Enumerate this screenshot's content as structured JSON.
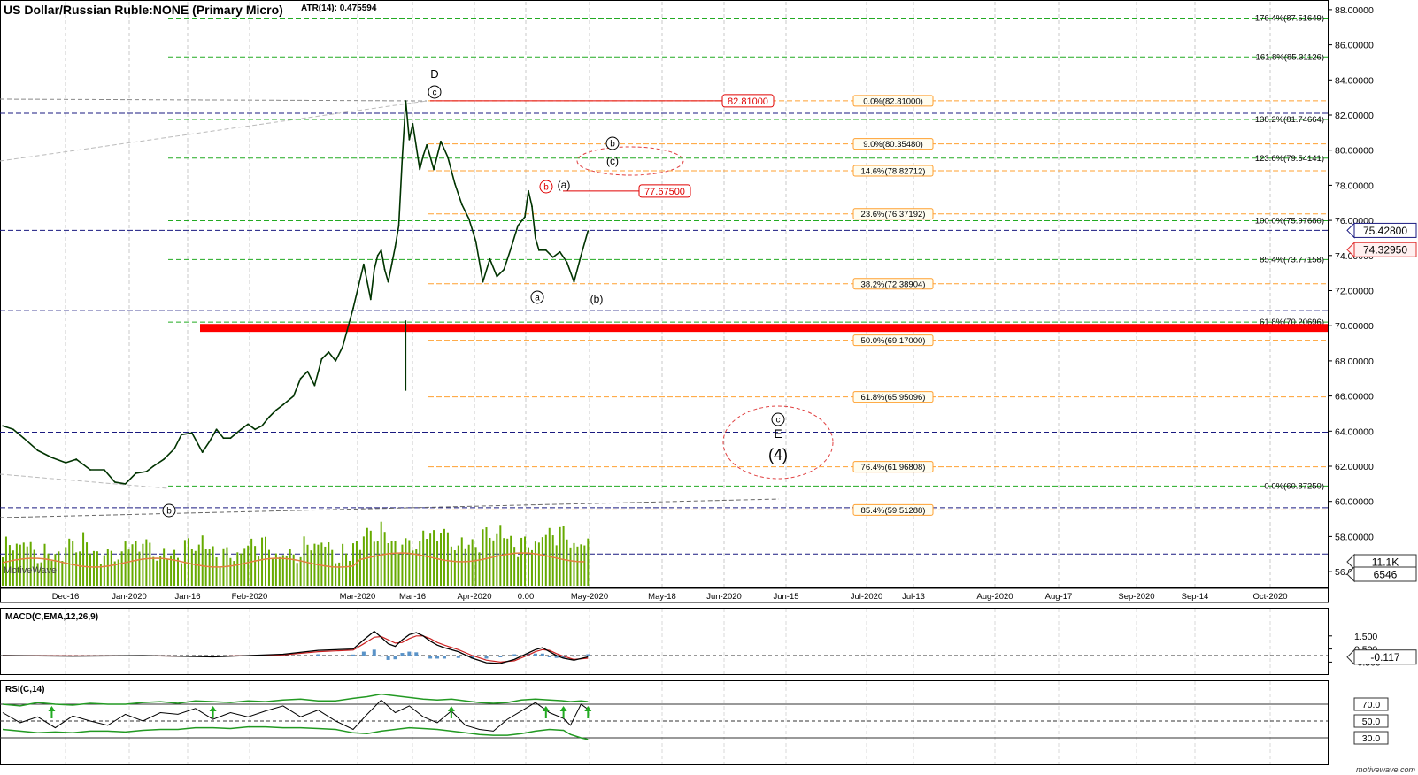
{
  "header": {
    "title": "US Dollar/Russian Ruble:NONE (Primary Micro)",
    "atr": "ATR(14): 0.475594"
  },
  "watermark": "MotiveWave",
  "footer_brand": "motivewave.com",
  "colors": {
    "price": "#003300",
    "green_fib": "#22aa22",
    "orange_fib": "#ffa030",
    "navy": "#1a1a80",
    "red_zone": "#ff0000",
    "volume": "#66aa00",
    "volume_avg": "#e08040",
    "macd_line": "#000000",
    "macd_signal": "#cc2222",
    "macd_hist": "#5a93c8",
    "rsi_line": "#000000",
    "rsi_band": "#229922",
    "rsi_arrow": "#22aa22"
  },
  "chart_data": {
    "type": "line",
    "main_panel": {
      "ylim": [
        55.5,
        88.3
      ],
      "y_ticks": [
        56,
        58,
        60,
        62,
        64,
        66,
        68,
        70,
        72,
        74,
        76,
        78,
        80,
        82,
        84,
        86,
        88
      ],
      "y_tick_labels": [
        "56.00000",
        "58.00000",
        "60.00000",
        "62.00000",
        "64.00000",
        "66.00000",
        "68.00000",
        "70.00000",
        "72.00000",
        "74.00000",
        "76.00000",
        "78.00000",
        "80.00000",
        "82.00000",
        "84.00000",
        "86.00000",
        "88.00000"
      ],
      "x_labels": [
        "Dec-16",
        "Jan-2020",
        "Jan-16",
        "Feb-2020",
        "Mar-2020",
        "Mar-16",
        "Apr-2020",
        "0:00",
        "May-2020",
        "May-18",
        "Jun-2020",
        "Jun-15",
        "Jul-2020",
        "Jul-13",
        "Aug-2020",
        "Aug-17",
        "Sep-2020",
        "Sep-14",
        "Oct-2020"
      ],
      "price_series": {
        "name": "",
        "x_day": [
          0,
          3,
          6,
          10,
          14,
          18,
          21,
          25,
          29,
          32,
          35,
          38,
          41,
          43,
          46,
          49,
          51,
          54,
          57,
          59,
          61,
          63,
          65,
          68,
          70,
          72,
          74,
          76,
          78,
          80,
          83,
          85,
          87,
          89,
          91,
          93,
          95,
          97,
          100,
          103,
          105,
          106,
          107,
          108,
          109,
          110,
          111,
          112,
          113,
          114,
          115,
          116,
          117,
          118,
          119,
          120,
          121,
          123,
          125,
          127,
          129,
          131,
          133,
          135,
          137,
          139,
          141,
          143,
          145,
          147,
          149,
          150,
          151,
          152,
          153,
          155,
          157,
          159,
          161,
          163,
          165,
          167
        ],
        "y": [
          64.3,
          64.1,
          63.6,
          62.9,
          62.5,
          62.2,
          62.4,
          61.8,
          61.8,
          61.1,
          61.0,
          61.6,
          61.7,
          62.0,
          62.4,
          63.0,
          63.8,
          63.9,
          62.8,
          63.4,
          64.1,
          63.6,
          63.6,
          64.1,
          64.4,
          64.1,
          64.3,
          64.8,
          65.2,
          65.5,
          66.0,
          67.0,
          67.4,
          66.6,
          68.1,
          68.5,
          68.0,
          68.8,
          71.0,
          73.5,
          71.5,
          73.2,
          74.0,
          74.3,
          73.2,
          72.5,
          73.5,
          74.5,
          75.7,
          79.5,
          82.8,
          80.6,
          81.5,
          80.2,
          78.9,
          79.7,
          80.3,
          78.9,
          80.5,
          79.6,
          78.1,
          76.9,
          76.1,
          74.8,
          72.5,
          73.8,
          72.8,
          73.2,
          74.4,
          75.7,
          76.2,
          77.68,
          76.8,
          75.0,
          74.3,
          74.3,
          73.9,
          74.2,
          73.6,
          72.5,
          74.0,
          75.4
        ]
      },
      "last_price_badge": "75.42800",
      "secondary_price_badge": "74.32950",
      "price_callouts": [
        {
          "label": "82.81000",
          "value": 82.81
        },
        {
          "label": "77.67500",
          "value": 77.675
        }
      ],
      "green_fibs": [
        {
          "label": "176.4%(87.51649)",
          "value": 87.51649
        },
        {
          "label": "161.8%(85.31126)",
          "value": 85.31126
        },
        {
          "label": "138.2%(81.74664)",
          "value": 81.74664
        },
        {
          "label": "123.6%(79.54141)",
          "value": 79.54141
        },
        {
          "label": "100.0%(75.97680)",
          "value": 75.9768
        },
        {
          "label": "85.4%(73.77158)",
          "value": 73.77158
        },
        {
          "label": "61.8%(70.20696)",
          "value": 70.20696
        },
        {
          "label": "0.0%(60.87250)",
          "value": 60.8725
        }
      ],
      "orange_fibs": [
        {
          "label": "0.0%(82.81000)",
          "value": 82.81
        },
        {
          "label": "9.0%(80.35480)",
          "value": 80.3548
        },
        {
          "label": "14.6%(78.82712)",
          "value": 78.82712
        },
        {
          "label": "23.6%(76.37192)",
          "value": 76.37192
        },
        {
          "label": "38.2%(72.38904)",
          "value": 72.38904
        },
        {
          "label": "50.0%(69.17000)",
          "value": 69.17
        },
        {
          "label": "61.8%(65.95096)",
          "value": 65.95096
        },
        {
          "label": "76.4%(61.96808)",
          "value": 61.96808
        },
        {
          "label": "85.4%(59.51288)",
          "value": 59.51288
        }
      ],
      "navy_levels": [
        82.1,
        75.43,
        70.86,
        63.94,
        59.64,
        57.0
      ],
      "red_zone": [
        69.65,
        70.1
      ],
      "wave_labels": [
        "D",
        "c",
        "b",
        "a",
        "(a)",
        "b",
        "(b)",
        "b",
        "(c)",
        "c",
        "E",
        "(4)"
      ],
      "volume_badges": [
        "11.1K",
        "6546"
      ]
    },
    "macd_panel": {
      "title": "MACD(C,EMA,12,26,9)",
      "ylim": [
        -0.75,
        2.05
      ],
      "y_ticks": [
        1.5,
        0.5,
        -0.5
      ],
      "y_tick_labels": [
        "1.500",
        "0.500",
        "-0.500"
      ],
      "last_value_badge": "-0.117",
      "macd_x": [
        0,
        20,
        40,
        60,
        80,
        90,
        100,
        103,
        106,
        108,
        110,
        112,
        114,
        116,
        118,
        120,
        122,
        124,
        126,
        130,
        134,
        138,
        142,
        146,
        150,
        152,
        154,
        156,
        158,
        160,
        163,
        167
      ],
      "macd_y": [
        0.0,
        -0.05,
        0.0,
        -0.1,
        0.1,
        0.4,
        0.5,
        1.2,
        1.85,
        1.4,
        0.9,
        0.7,
        1.2,
        1.6,
        1.75,
        1.5,
        1.1,
        0.8,
        0.6,
        0.3,
        -0.2,
        -0.55,
        -0.6,
        -0.3,
        0.2,
        0.45,
        0.6,
        0.3,
        0.0,
        -0.2,
        -0.35,
        -0.1
      ],
      "signal_y": [
        0.0,
        -0.03,
        -0.02,
        -0.06,
        0.05,
        0.3,
        0.42,
        0.9,
        1.4,
        1.45,
        1.2,
        0.95,
        1.0,
        1.3,
        1.5,
        1.5,
        1.3,
        1.0,
        0.8,
        0.45,
        0.0,
        -0.35,
        -0.5,
        -0.4,
        0.05,
        0.3,
        0.45,
        0.4,
        0.15,
        -0.05,
        -0.3,
        -0.2
      ],
      "hist_y": [
        0.0,
        -0.02,
        0.02,
        -0.04,
        0.05,
        0.1,
        0.08,
        0.3,
        0.45,
        -0.05,
        -0.3,
        -0.25,
        0.2,
        0.3,
        0.25,
        0.0,
        -0.2,
        -0.2,
        -0.2,
        -0.15,
        -0.2,
        -0.2,
        -0.1,
        0.1,
        0.15,
        0.15,
        0.15,
        -0.1,
        -0.15,
        -0.15,
        -0.05,
        0.1
      ]
    },
    "rsi_panel": {
      "title": "RSI(C,14)",
      "ylim": [
        18,
        84
      ],
      "y_ticks": [
        70,
        50,
        30
      ],
      "y_tick_labels": [
        "70.0",
        "50.0",
        "30.0"
      ],
      "rsi_x": [
        0,
        5,
        10,
        15,
        20,
        25,
        30,
        35,
        40,
        45,
        50,
        55,
        60,
        65,
        70,
        75,
        80,
        85,
        90,
        95,
        100,
        104,
        108,
        112,
        116,
        120,
        124,
        128,
        132,
        136,
        140,
        144,
        148,
        152,
        156,
        160,
        162,
        165,
        167
      ],
      "rsi_y": [
        60,
        48,
        55,
        42,
        56,
        50,
        45,
        58,
        50,
        60,
        58,
        65,
        52,
        60,
        55,
        62,
        68,
        55,
        63,
        50,
        40,
        58,
        75,
        60,
        68,
        55,
        48,
        62,
        45,
        40,
        38,
        52,
        62,
        72,
        60,
        53,
        45,
        70,
        64
      ],
      "upper_band": [
        70,
        68,
        72,
        70,
        69,
        71,
        70,
        70,
        72,
        73,
        71,
        74,
        73,
        72,
        74,
        73,
        75,
        76,
        74,
        74,
        77,
        79,
        82,
        80,
        78,
        76,
        75,
        76,
        74,
        72,
        71,
        72,
        75,
        76,
        75,
        74,
        73,
        74,
        73
      ],
      "lower_band": [
        40,
        38,
        36,
        37,
        36,
        38,
        38,
        37,
        39,
        40,
        40,
        42,
        42,
        41,
        43,
        43,
        42,
        42,
        41,
        40,
        36,
        35,
        38,
        40,
        42,
        41,
        40,
        38,
        36,
        34,
        33,
        33,
        35,
        38,
        40,
        39,
        34,
        30,
        28
      ]
    }
  }
}
